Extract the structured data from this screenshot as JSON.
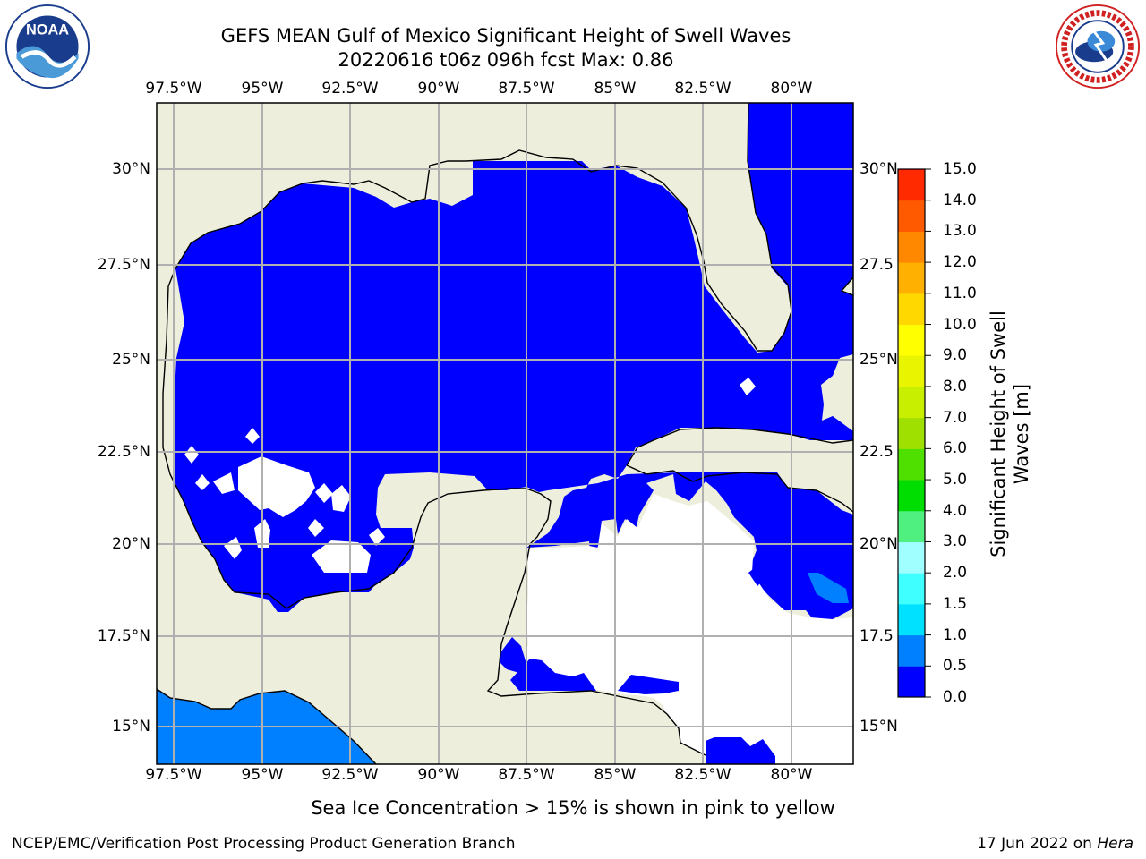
{
  "title": {
    "line1": "GEFS MEAN Gulf of Mexico Significant Height of Swell Waves",
    "line2": "20220616 t06z 096h fcst   Max: 0.86"
  },
  "logos": {
    "left": {
      "name": "noaa-logo",
      "text": "NOAA"
    },
    "right": {
      "name": "nws-logo",
      "ring_text": "NATIONAL WEATHER SERVICE"
    }
  },
  "map": {
    "lon_labels": [
      "97.5°W",
      "95°W",
      "92.5°W",
      "90°W",
      "87.5°W",
      "85°W",
      "82.5°W",
      "80°W"
    ],
    "lat_labels": [
      "30°N",
      "27.5°N",
      "25°N",
      "22.5°N",
      "20°N",
      "17.5°N",
      "15°N"
    ],
    "lat_labels_right": [
      "30°N",
      "27.5",
      "25°N",
      "22.5",
      "20°N",
      "17.5",
      "15°N"
    ],
    "land_color": "#eeeedc",
    "ocean_low_color": "#0000ff",
    "ocean_mid_color": "#0080ff",
    "no_data_color": "#ffffff",
    "grid_color": "#b0b0b0"
  },
  "colorbar": {
    "label": "Significant Height of Swell Waves [m]",
    "ticks": [
      "0.0",
      "0.5",
      "1.0",
      "1.5",
      "2.0",
      "3.0",
      "4.0",
      "5.0",
      "6.0",
      "7.0",
      "8.0",
      "9.0",
      "10.0",
      "11.0",
      "12.0",
      "13.0",
      "14.0",
      "15.0"
    ],
    "colors": [
      "#0000ff",
      "#0080ff",
      "#00e0ff",
      "#40ffff",
      "#a0ffff",
      "#50f080",
      "#00dd00",
      "#50e000",
      "#a0e000",
      "#c8ee00",
      "#e8f400",
      "#ffff00",
      "#ffd800",
      "#ffb000",
      "#ff8800",
      "#ff5a00",
      "#ff2a00",
      "#ff0000"
    ]
  },
  "footer": {
    "ice_note": "Sea Ice Concentration > 15% is shown in pink to yellow",
    "left": "NCEP/EMC/Verification Post Processing Product Generation Branch",
    "right_date": "17 Jun 2022 on ",
    "right_host": "Hera"
  }
}
